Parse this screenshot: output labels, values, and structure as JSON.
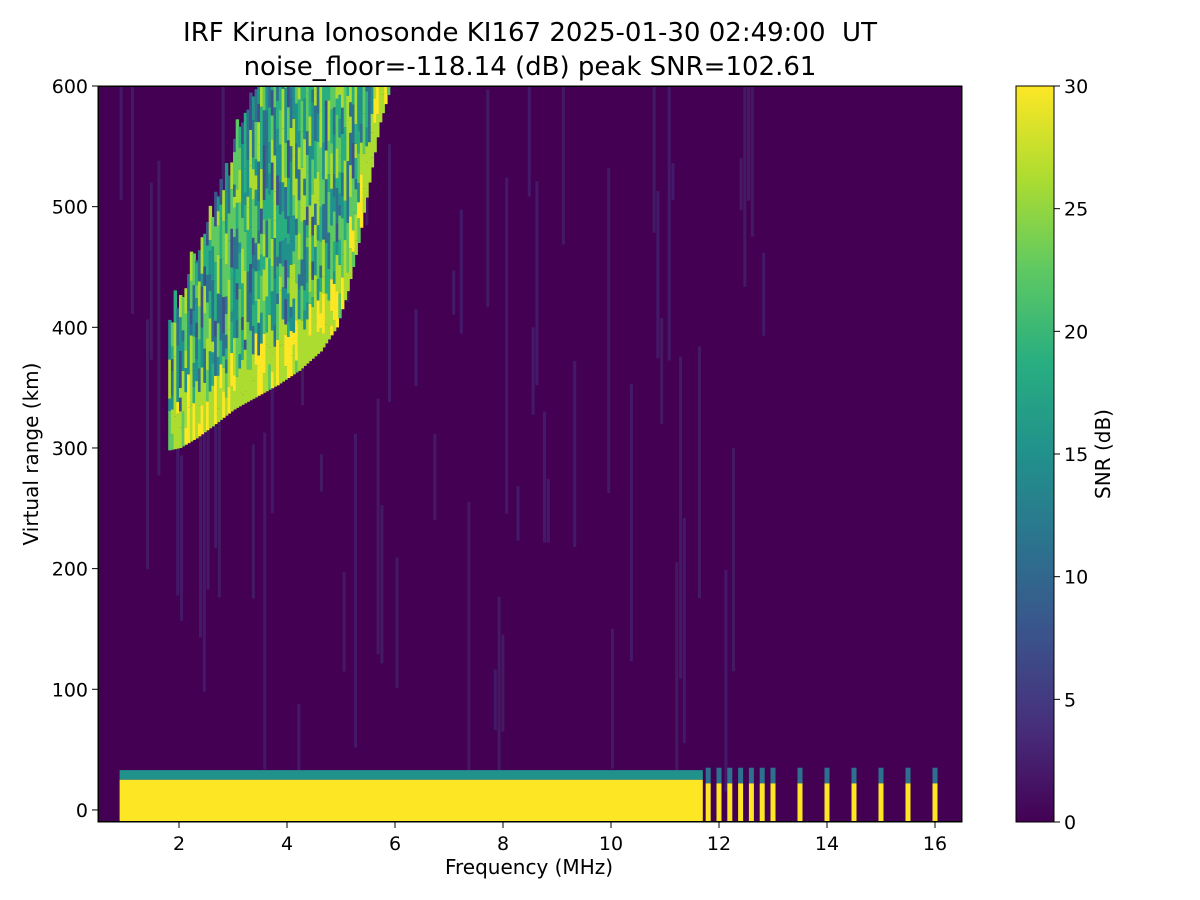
{
  "chart_data": {
    "type": "heatmap",
    "title": "IRF Kiruna Ionosonde KI167 2025-01-30 02:49:00  UT",
    "subtitle": "noise_floor=-118.14 (dB) peak SNR=102.61",
    "xlabel": "Frequency (MHz)",
    "ylabel": "Virtual range (km)",
    "xlim": [
      0.5,
      16.5
    ],
    "ylim": [
      -10,
      600
    ],
    "x_ticks": [
      2,
      4,
      6,
      8,
      10,
      12,
      14,
      16
    ],
    "y_ticks": [
      0,
      100,
      200,
      300,
      400,
      500,
      600
    ],
    "colorbar": {
      "label": "SNR (dB)",
      "range": [
        0,
        30
      ],
      "ticks": [
        0,
        5,
        10,
        15,
        20,
        25,
        30
      ],
      "colormap": "viridis"
    },
    "traces": [
      {
        "name_hidden": "",
        "points": [
          [
            1.8,
            298
          ],
          [
            2.0,
            300
          ],
          [
            2.3,
            308
          ],
          [
            2.6,
            318
          ],
          [
            3.0,
            332
          ],
          [
            3.4,
            342
          ],
          [
            3.8,
            352
          ],
          [
            4.2,
            364
          ],
          [
            4.6,
            380
          ],
          [
            4.9,
            400
          ],
          [
            5.1,
            430
          ],
          [
            5.3,
            470
          ],
          [
            5.5,
            520
          ],
          [
            5.7,
            570
          ],
          [
            5.9,
            600
          ]
        ]
      }
    ],
    "ground_echo": {
      "range_km": [
        0,
        25
      ],
      "freq_mhz": [
        0.9,
        11.7
      ]
    },
    "colors": {
      "background": "#440154",
      "high": "#fde725"
    }
  }
}
